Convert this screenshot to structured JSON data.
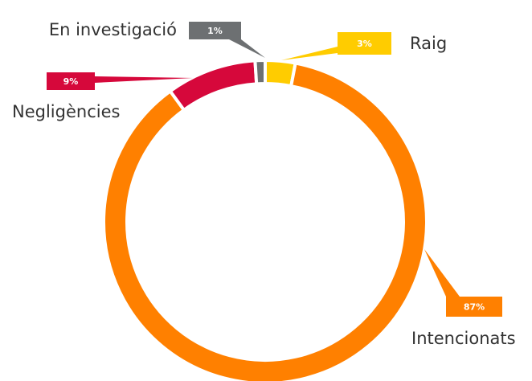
{
  "chart_data": {
    "type": "pie",
    "categories": [
      "Raig",
      "Intencionats",
      "Negligències",
      "En investigació"
    ],
    "values": [
      3,
      87,
      9,
      1
    ],
    "value_labels": [
      "3%",
      "87%",
      "9%",
      "1%"
    ],
    "colors": [
      "#ffcc00",
      "#ff8000",
      "#d6083b",
      "#6d7072"
    ],
    "donut": true
  }
}
